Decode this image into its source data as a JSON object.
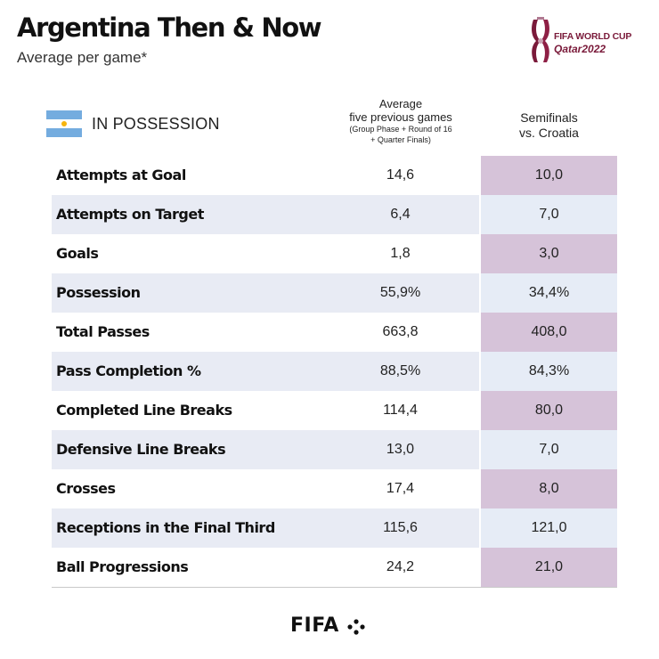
{
  "header": {
    "title": "Argentina Then & Now",
    "subtitle": "Average per game*"
  },
  "logo": {
    "line1": "FIFA WORLD CUP",
    "line2": "Qatar2022",
    "icon": "world-cup-emblem-icon"
  },
  "section": {
    "label": "IN POSSESSION",
    "flag_icon": "argentina-flag-icon"
  },
  "columns": {
    "previous_line1": "Average",
    "previous_line2": "five previous games",
    "previous_line3": "(Group Phase + Round of 16",
    "previous_line4": "+ Quarter Finals)",
    "semi_line1": "Semifinals",
    "semi_line2": "vs. Croatia"
  },
  "rows": [
    {
      "label": "Attempts at Goal",
      "previous": "14,6",
      "semi": "10,0"
    },
    {
      "label": "Attempts on Target",
      "previous": "6,4",
      "semi": "7,0"
    },
    {
      "label": "Goals",
      "previous": "1,8",
      "semi": "3,0"
    },
    {
      "label": "Possession",
      "previous": "55,9%",
      "semi": "34,4%"
    },
    {
      "label": "Total Passes",
      "previous": "663,8",
      "semi": "408,0"
    },
    {
      "label": "Pass Completion %",
      "previous": "88,5%",
      "semi": "84,3%"
    },
    {
      "label": "Completed Line Breaks",
      "previous": "114,4",
      "semi": "80,0"
    },
    {
      "label": "Defensive Line Breaks",
      "previous": "13,0",
      "semi": "7,0"
    },
    {
      "label": "Crosses",
      "previous": "17,4",
      "semi": "8,0"
    },
    {
      "label": "Receptions in the Final Third",
      "previous": "115,6",
      "semi": "121,0"
    },
    {
      "label": "Ball Progressions",
      "previous": "24,2",
      "semi": "21,0"
    }
  ],
  "footer": {
    "brand": "FIFA",
    "brand_icon": "fifa-dots-icon"
  },
  "colors": {
    "highlight": "#d6c3d9",
    "alt_row": "#e8ebf4",
    "logo_maroon": "#7a1a3a",
    "flag_blue": "#74acdf"
  }
}
